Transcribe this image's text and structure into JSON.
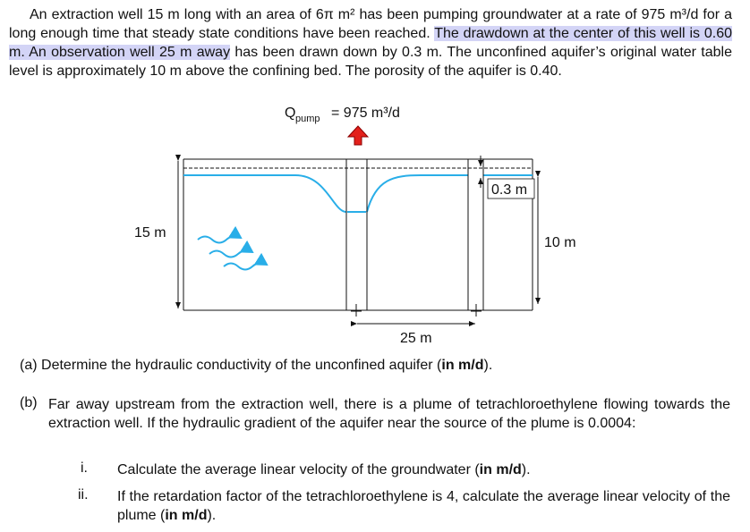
{
  "problem": {
    "intro": "An extraction well 15 m long with an area of 6π m² has been pumping groundwater at a rate of 975 m³/d for a long enough time that steady state conditions have been reached. ",
    "highlight": "The drawdown at the center of this well is 0.60 m. An observation well 25 m away",
    "rest": " has been drawn down by 0.3 m. The unconfined aquifer’s original water table level is approximately 10 m above the confining bed. The porosity of the aquifer is 0.40."
  },
  "diagram": {
    "flow_symbol": "Q",
    "flow_subscript": "pump",
    "flow_value": "= 975 m³/d",
    "well_length": "15 m",
    "drawdown_obs": "0.3 m",
    "water_table": "10 m",
    "distance": "25 m"
  },
  "questions": {
    "a": {
      "label": "(a)",
      "text": "Determine the hydraulic conductivity of the unconfined aquifer (",
      "bold": "in m/d",
      "end": ")."
    },
    "b": {
      "label": "(b)",
      "text": "Far away upstream from the extraction well, there is a plume of tetrachloroethylene flowing towards the extraction well. If the hydraulic gradient of the aquifer near the source of the plume is 0.0004:"
    },
    "items": [
      {
        "label": "i.",
        "text": "Calculate the average linear velocity of the groundwater (",
        "bold": "in m/d",
        "end": ")."
      },
      {
        "label": "ii.",
        "text": "If the retardation factor of the tetrachloroethylene is 4, calculate the average linear velocity of the plume (",
        "bold": "in m/d",
        "end": ")."
      }
    ]
  }
}
